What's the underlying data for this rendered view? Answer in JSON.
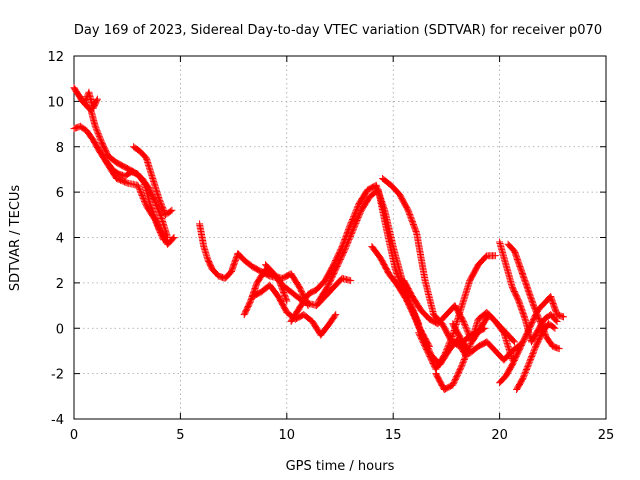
{
  "chart_data": {
    "type": "scatter",
    "title": "Day 169 of 2023, Sidereal Day-to-day VTEC variation (SDTVAR) for receiver p070",
    "xlabel": "GPS time / hours",
    "ylabel": "SDTVAR / TECUs",
    "xlim": [
      0,
      25
    ],
    "ylim": [
      -4,
      12
    ],
    "x_ticks": [
      "0",
      "5",
      "10",
      "15",
      "20",
      "25"
    ],
    "y_ticks": [
      "-4",
      "-2",
      "0",
      "2",
      "4",
      "6",
      "8",
      "10",
      "12"
    ],
    "grid": true,
    "marker": "plus",
    "color": "#ff0000",
    "series": [
      {
        "x": [
          0.0,
          0.2,
          0.4,
          0.6,
          0.8,
          1.0,
          1.3,
          1.6,
          2.0,
          2.4,
          2.8,
          3.2,
          3.5,
          3.8,
          4.1,
          4.4
        ],
        "y": [
          10.6,
          10.3,
          10.0,
          9.8,
          9.6,
          8.9,
          8.2,
          7.6,
          7.3,
          7.1,
          6.9,
          6.6,
          6.2,
          5.6,
          4.9,
          4.0
        ]
      },
      {
        "x": [
          0.0,
          0.3,
          0.6,
          0.9,
          1.2,
          1.6,
          2.0,
          2.5,
          3.0,
          3.4,
          3.8,
          4.2
        ],
        "y": [
          8.8,
          8.9,
          8.7,
          8.3,
          7.8,
          7.2,
          6.6,
          6.4,
          6.3,
          5.4,
          4.8,
          3.9
        ]
      },
      {
        "x": [
          0.3,
          0.5,
          0.7,
          0.9,
          1.1
        ],
        "y": [
          10.2,
          9.9,
          10.4,
          9.7,
          10.1
        ]
      },
      {
        "x": [
          2.8,
          3.1,
          3.4,
          3.7,
          4.0,
          4.3,
          4.6
        ],
        "y": [
          8.0,
          7.8,
          7.5,
          6.6,
          5.7,
          5.0,
          5.2
        ]
      },
      {
        "x": [
          1.5,
          1.8,
          2.1,
          2.4,
          2.7,
          3.0,
          3.3,
          3.6,
          4.0,
          4.4,
          4.7
        ],
        "y": [
          7.4,
          7.0,
          6.8,
          6.7,
          6.9,
          6.8,
          6.4,
          5.4,
          4.4,
          3.7,
          4.0
        ]
      },
      {
        "x": [
          5.9,
          6.1,
          6.3,
          6.5,
          6.8,
          7.1,
          7.4,
          7.7,
          8.0,
          8.4,
          8.8,
          9.2,
          9.6,
          10.0
        ],
        "y": [
          4.6,
          3.6,
          3.0,
          2.6,
          2.3,
          2.2,
          2.5,
          3.3,
          3.0,
          2.7,
          2.5,
          2.3,
          2.2,
          1.2
        ]
      },
      {
        "x": [
          8.0,
          8.3,
          8.6,
          9.0,
          9.4,
          9.8,
          10.2,
          10.6,
          11.0
        ],
        "y": [
          0.6,
          1.2,
          2.0,
          2.6,
          2.3,
          2.2,
          2.4,
          1.8,
          1.0
        ]
      },
      {
        "x": [
          8.4,
          8.8,
          9.2,
          9.6,
          10.0,
          10.4,
          10.8,
          11.2,
          11.6,
          12.0,
          12.3
        ],
        "y": [
          1.4,
          1.6,
          1.9,
          1.4,
          0.7,
          0.4,
          0.6,
          0.3,
          -0.3,
          0.2,
          0.6
        ]
      },
      {
        "x": [
          9.0,
          9.4,
          9.8,
          10.2,
          10.6,
          11.0,
          11.4,
          11.8,
          12.2,
          12.6,
          13.0
        ],
        "y": [
          2.8,
          2.4,
          1.9,
          1.6,
          1.3,
          1.1,
          1.0,
          1.4,
          1.8,
          2.2,
          2.1
        ]
      },
      {
        "x": [
          10.2,
          10.6,
          11.0,
          11.4,
          11.8,
          12.2,
          12.6,
          13.0,
          13.4,
          13.8,
          14.2,
          14.6,
          15.0,
          15.4,
          15.8,
          16.2
        ],
        "y": [
          0.3,
          0.9,
          1.5,
          1.7,
          2.1,
          2.8,
          3.6,
          4.6,
          5.5,
          6.1,
          6.3,
          5.2,
          3.6,
          2.2,
          1.1,
          0.2
        ]
      },
      {
        "x": [
          11.5,
          11.9,
          12.3,
          12.7,
          13.1,
          13.5,
          13.9,
          14.3,
          14.7,
          15.1,
          15.5,
          15.9,
          16.3,
          16.7
        ],
        "y": [
          1.2,
          1.8,
          2.6,
          3.4,
          4.3,
          5.2,
          5.8,
          6.1,
          4.3,
          2.6,
          1.6,
          0.8,
          -0.1,
          -0.8
        ]
      },
      {
        "x": [
          14.0,
          14.4,
          14.8,
          15.2,
          15.6,
          16.0,
          16.4,
          16.8,
          17.2,
          17.6,
          18.0,
          18.4
        ],
        "y": [
          3.6,
          3.1,
          2.4,
          1.9,
          1.3,
          0.5,
          -0.4,
          -1.2,
          -1.6,
          -1.0,
          -0.5,
          -1.2
        ]
      },
      {
        "x": [
          14.5,
          14.9,
          15.3,
          15.7,
          16.1,
          16.5,
          16.9,
          17.3,
          17.7,
          18.1,
          18.5,
          18.9,
          19.3
        ],
        "y": [
          6.6,
          6.3,
          5.9,
          5.2,
          4.2,
          2.1,
          0.6,
          0.2,
          -0.5,
          -0.8,
          -0.4,
          -0.2,
          0.0
        ]
      },
      {
        "x": [
          15.5,
          15.9,
          16.3,
          16.7,
          17.1,
          17.5,
          17.9,
          18.3,
          18.7,
          19.1,
          19.5,
          19.9,
          20.3,
          20.7
        ],
        "y": [
          2.1,
          1.4,
          0.8,
          0.4,
          0.2,
          0.6,
          1.0,
          0.3,
          -0.6,
          0.0,
          0.6,
          0.2,
          -0.2,
          -0.6
        ]
      },
      {
        "x": [
          16.2,
          16.6,
          17.0,
          17.4,
          17.8,
          18.2,
          18.6,
          19.0,
          19.4,
          19.8
        ],
        "y": [
          -0.2,
          -1.0,
          -1.8,
          -1.2,
          -0.3,
          0.9,
          2.1,
          2.8,
          3.2,
          3.2
        ]
      },
      {
        "x": [
          17.0,
          17.4,
          17.8,
          18.2,
          18.6,
          19.0,
          19.4,
          19.8,
          20.2,
          20.6
        ],
        "y": [
          -2.0,
          -2.7,
          -2.5,
          -1.7,
          -0.8,
          0.4,
          0.7,
          0.3,
          -0.2,
          -1.4
        ]
      },
      {
        "x": [
          17.8,
          18.2,
          18.6,
          19.0,
          19.4,
          19.8,
          20.2,
          20.6,
          21.0
        ],
        "y": [
          0.2,
          -0.5,
          -1.1,
          -0.8,
          -0.6,
          -1.0,
          -1.4,
          -1.0,
          -0.7
        ]
      },
      {
        "x": [
          20.0,
          20.3,
          20.6,
          20.9,
          21.2,
          21.5,
          21.8,
          22.1,
          22.4,
          22.7
        ],
        "y": [
          3.8,
          2.8,
          1.8,
          1.2,
          0.4,
          -0.6,
          -0.1,
          0.4,
          0.6,
          0.3
        ]
      },
      {
        "x": [
          20.4,
          20.7,
          21.0,
          21.3,
          21.6,
          21.9,
          22.2,
          22.5,
          22.8
        ],
        "y": [
          3.7,
          3.4,
          2.6,
          1.8,
          1.0,
          0.3,
          -0.4,
          -0.8,
          -0.9
        ]
      },
      {
        "x": [
          20.0,
          20.3,
          20.6,
          20.9,
          21.2,
          21.5,
          21.8,
          22.1,
          22.4,
          22.7,
          23.0
        ],
        "y": [
          -2.4,
          -2.1,
          -1.6,
          -1.0,
          -0.4,
          0.2,
          0.8,
          1.1,
          1.4,
          0.6,
          0.5
        ]
      },
      {
        "x": [
          20.8,
          21.1,
          21.4,
          21.7,
          22.0,
          22.3,
          22.6
        ],
        "y": [
          -2.7,
          -2.2,
          -1.5,
          -0.8,
          -0.2,
          0.2,
          0.0
        ]
      }
    ]
  }
}
